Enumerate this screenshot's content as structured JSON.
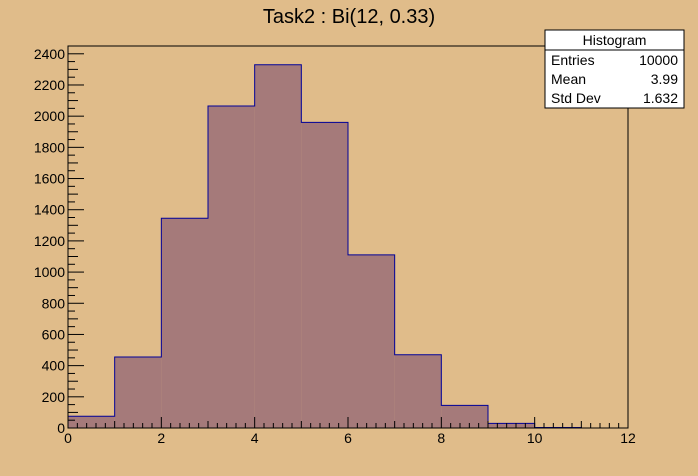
{
  "chart_data": {
    "type": "bar",
    "title": "Task2 : Bi(12, 0.33)",
    "xlabel": "",
    "ylabel": "",
    "bin_edges": [
      0,
      1,
      2,
      3,
      4,
      5,
      6,
      7,
      8,
      9,
      10,
      11,
      12
    ],
    "values": [
      75,
      455,
      1345,
      2065,
      2330,
      1960,
      1110,
      470,
      145,
      30,
      3,
      0
    ],
    "xlim": [
      0,
      12
    ],
    "ylim": [
      0,
      2450
    ],
    "x_ticks": [
      0,
      2,
      4,
      6,
      8,
      10,
      12
    ],
    "y_ticks": [
      0,
      200,
      400,
      600,
      800,
      1000,
      1200,
      1400,
      1600,
      1800,
      2000,
      2200,
      2400
    ],
    "grid": false,
    "colors": {
      "fill": "#a57a7a",
      "line": "#000099",
      "frame": "#000000",
      "pad": "#e0bc8a"
    },
    "stats_box": {
      "title": "Histogram",
      "rows": [
        {
          "label": "Entries",
          "value": "10000"
        },
        {
          "label": "Mean",
          "value": "3.99"
        },
        {
          "label": "Std Dev",
          "value": "1.632"
        }
      ],
      "placement": "top-right"
    }
  }
}
